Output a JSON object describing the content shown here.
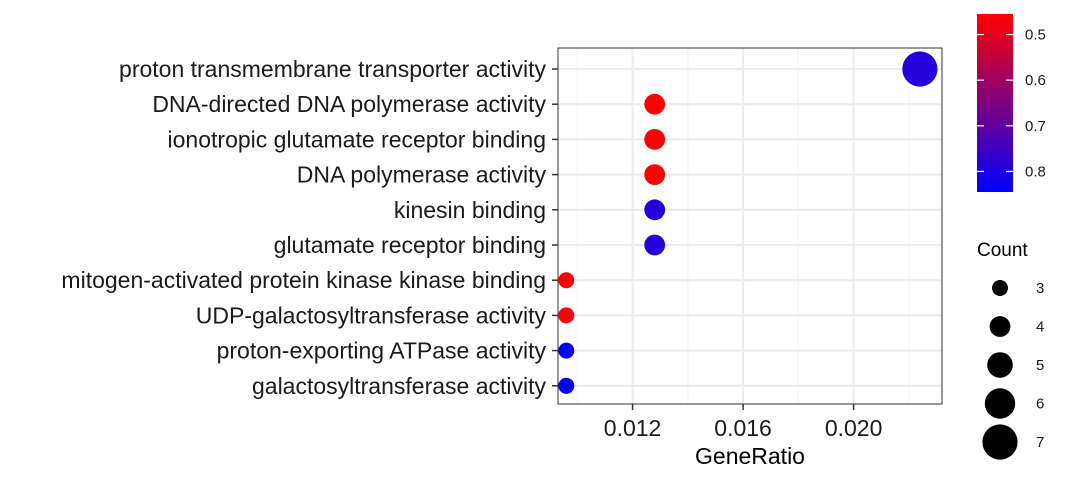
{
  "chart_data": {
    "type": "scatter",
    "xlabel": "GeneRatio",
    "ylabel": "",
    "xlim": [
      0.0093,
      0.0232
    ],
    "x_ticks": [
      0.012,
      0.016,
      0.02
    ],
    "x_tick_labels": [
      "0.012",
      "0.016",
      "0.020"
    ],
    "grid": true,
    "categories": [
      "proton transmembrane transporter activity",
      "DNA-directed DNA polymerase activity",
      "ionotropic glutamate receptor binding",
      "DNA polymerase activity",
      "kinesin binding",
      "glutamate receptor binding",
      "mitogen-activated protein kinase kinase binding",
      "UDP-galactosyltransferase activity",
      "proton-exporting ATPase activity",
      "galactosyltransferase activity"
    ],
    "points": [
      {
        "category": "proton transmembrane transporter activity",
        "x": 0.0224,
        "count": 7,
        "p_adjust": 0.79
      },
      {
        "category": "DNA-directed DNA polymerase activity",
        "x": 0.0128,
        "count": 4,
        "p_adjust": 0.46
      },
      {
        "category": "ionotropic glutamate receptor binding",
        "x": 0.0128,
        "count": 4,
        "p_adjust": 0.46
      },
      {
        "category": "DNA polymerase activity",
        "x": 0.0128,
        "count": 4,
        "p_adjust": 0.46
      },
      {
        "category": "kinesin binding",
        "x": 0.0128,
        "count": 4,
        "p_adjust": 0.79
      },
      {
        "category": "glutamate receptor binding",
        "x": 0.0128,
        "count": 4,
        "p_adjust": 0.79
      },
      {
        "category": "mitogen-activated protein kinase kinase binding",
        "x": 0.0096,
        "count": 3,
        "p_adjust": 0.46
      },
      {
        "category": "UDP-galactosyltransferase activity",
        "x": 0.0096,
        "count": 3,
        "p_adjust": 0.46
      },
      {
        "category": "proton-exporting ATPase activity",
        "x": 0.0096,
        "count": 3,
        "p_adjust": 0.84
      },
      {
        "category": "galactosyltransferase activity",
        "x": 0.0096,
        "count": 3,
        "p_adjust": 0.84
      }
    ],
    "color_legend": {
      "title": "",
      "low_color": "#ff0000",
      "high_color": "#0000ff",
      "range": [
        0.455,
        0.845
      ],
      "ticks": [
        0.5,
        0.6,
        0.7,
        0.8
      ],
      "tick_labels": [
        "0.5",
        "0.6",
        "0.7",
        "0.8"
      ]
    },
    "size_legend": {
      "title": "Count",
      "values": [
        3,
        4,
        5,
        6,
        7
      ],
      "labels": [
        "3",
        "4",
        "5",
        "6",
        "7"
      ],
      "color": "#000000"
    },
    "colors": {
      "panel_border": "#333333",
      "grid_major": "#ebebeb",
      "grid_minor": "#f5f5f5"
    }
  }
}
